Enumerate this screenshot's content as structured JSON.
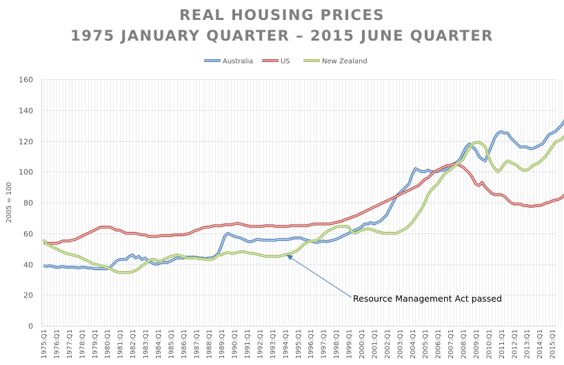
{
  "chart_data": {
    "type": "line",
    "title": "REAL HOUSING PRICES",
    "subtitle": "1975 JANUARY QUARTER – 2015 JUNE QUARTER",
    "xlabel": "",
    "ylabel": "2005 = 100",
    "ylim": [
      0,
      160
    ],
    "yticks": [
      0,
      20,
      40,
      60,
      80,
      100,
      120,
      140,
      160
    ],
    "grid": true,
    "legend_position": "top-center",
    "x_start": "1975:Q1",
    "x_end": "2015:Q2",
    "x_tick_labels": [
      "1975:Q1",
      "1976:Q1",
      "1977:Q1",
      "1978:Q1",
      "1979:Q1",
      "1980:Q1",
      "1981:Q1",
      "1982:Q1",
      "1983:Q1",
      "1984:Q1",
      "1985:Q1",
      "1986:Q1",
      "1987:Q1",
      "1988:Q1",
      "1989:Q1",
      "1990:Q1",
      "1991:Q1",
      "1992:Q1",
      "1993:Q1",
      "1994:Q1",
      "1995:Q1",
      "1996:Q1",
      "1997:Q1",
      "1998:Q1",
      "1999:Q1",
      "2000:Q1",
      "2001:Q1",
      "2002:Q1",
      "2003:Q1",
      "2004:Q1",
      "2005:Q1",
      "2006:Q1",
      "2007:Q1",
      "2008:Q1",
      "2009:Q1",
      "2010:Q1",
      "2011:Q1",
      "2012:Q1",
      "2013:Q1",
      "2014:Q1",
      "2015:Q1"
    ],
    "series": [
      {
        "name": "Australia",
        "color": "#4a7ebb",
        "values": [
          39,
          38.5,
          39,
          38.5,
          38,
          38,
          38.5,
          38,
          38,
          38,
          38,
          37.5,
          38,
          38,
          37.5,
          37.5,
          37,
          37,
          37,
          37,
          37,
          38,
          40,
          42,
          43,
          43,
          43,
          45,
          46,
          44,
          45,
          43,
          44,
          42,
          41,
          40,
          40,
          41,
          41,
          41,
          42,
          43,
          44,
          44,
          44,
          44.5,
          44.5,
          44.5,
          44.5,
          44,
          44,
          43.5,
          44,
          44,
          45,
          47,
          52,
          58,
          60,
          59,
          58,
          57.5,
          57,
          56,
          55,
          54.5,
          55,
          56,
          56,
          55.5,
          55.5,
          55.5,
          55.5,
          55.5,
          56,
          56,
          56,
          56,
          56.5,
          57,
          57,
          57,
          56,
          55.5,
          55,
          54.5,
          54,
          54.5,
          55,
          54.5,
          55,
          55.5,
          56,
          57,
          58,
          59,
          60,
          61,
          62,
          63,
          64,
          66,
          66,
          67,
          66,
          67,
          68,
          70,
          72,
          76,
          80,
          84,
          86,
          88,
          90,
          92,
          98,
          102,
          101,
          100,
          100,
          101,
          100,
          100,
          100,
          101,
          101,
          102,
          104,
          105,
          106,
          108,
          112,
          116,
          118,
          116,
          114,
          110,
          108,
          107,
          112,
          117,
          122,
          125,
          126,
          125,
          125,
          122,
          120,
          118,
          116,
          116,
          116,
          115,
          115,
          116,
          117,
          118,
          121,
          124,
          125,
          126,
          128,
          130,
          133,
          138
        ]
      },
      {
        "name": "US",
        "color": "#be4b48",
        "values": [
          54,
          53.5,
          53.5,
          53.5,
          53.5,
          54,
          55,
          55,
          55,
          55.5,
          56,
          57,
          58,
          59,
          60,
          61,
          62,
          63,
          64,
          64,
          64,
          64,
          63,
          62,
          62,
          61,
          60,
          60,
          60,
          60,
          59.5,
          59,
          59,
          58,
          58,
          58,
          58,
          58.5,
          58.5,
          58.5,
          58.5,
          59,
          59,
          59,
          59,
          59.5,
          60,
          61,
          62,
          62.5,
          63.5,
          64,
          64,
          64.5,
          65,
          65,
          65,
          65.5,
          65.5,
          65.5,
          66,
          66.5,
          66,
          65.5,
          65,
          64.5,
          64.5,
          64.5,
          64.5,
          64.5,
          65,
          65,
          65,
          64.5,
          64.5,
          64.5,
          64.5,
          64.5,
          65,
          65,
          65,
          65,
          65,
          65,
          65.5,
          66,
          66,
          66,
          66,
          66,
          66,
          66.5,
          67,
          67.5,
          68,
          69,
          69.5,
          70.5,
          71,
          72,
          73,
          74,
          75,
          76,
          77,
          78,
          79,
          80,
          81,
          82,
          83,
          84,
          85,
          86,
          87,
          88,
          89,
          90,
          91,
          93,
          95,
          96,
          98,
          100,
          101,
          102,
          103,
          104,
          104,
          105,
          105,
          104,
          103,
          101,
          99,
          96,
          92,
          91,
          93,
          90,
          88,
          86,
          85,
          85,
          85,
          84,
          82,
          80,
          79,
          79,
          79,
          78,
          78,
          77.5,
          77.5,
          78,
          78,
          78.5,
          79.5,
          80,
          81,
          81.5,
          82,
          83,
          85,
          87
        ]
      },
      {
        "name": "New Zealand",
        "color": "#9bbb59",
        "values": [
          56,
          53,
          52,
          51,
          50,
          49,
          48,
          47,
          46.5,
          46,
          45.5,
          45,
          44,
          43,
          42,
          41,
          40,
          39.5,
          39,
          38.5,
          38,
          37,
          36,
          35,
          34.5,
          34.5,
          34.5,
          34.5,
          35,
          36,
          37,
          39,
          40,
          42,
          43,
          43,
          42,
          42,
          43,
          44,
          45,
          45.5,
          46,
          45.5,
          45,
          44,
          44,
          44,
          44,
          43.5,
          43.5,
          43,
          43,
          43,
          44,
          46,
          46,
          47,
          47.5,
          47,
          47,
          47.5,
          48,
          48,
          47.5,
          47,
          47,
          46.5,
          46,
          45.5,
          45,
          45,
          45,
          45,
          45,
          45.5,
          46,
          46.5,
          47,
          48,
          49,
          51,
          53,
          54,
          55,
          55,
          55.5,
          57,
          59,
          61,
          62,
          63,
          64,
          64.5,
          64.5,
          64.5,
          64,
          61,
          60,
          61,
          62,
          62.5,
          63,
          62.5,
          62,
          61,
          60.5,
          60,
          60,
          60,
          60,
          60,
          61,
          62,
          63,
          65,
          67,
          70,
          73,
          76,
          80,
          85,
          88,
          90,
          92,
          95,
          98,
          100,
          101,
          103,
          105,
          106,
          108,
          112,
          115,
          118,
          119,
          119,
          118,
          116,
          110,
          105,
          102,
          100,
          102,
          105,
          107,
          106,
          105,
          104,
          102,
          101,
          101,
          102,
          104,
          105,
          106,
          108,
          110,
          113,
          116,
          119,
          120,
          121,
          123,
          125,
          128,
          131
        ]
      }
    ],
    "annotations": [
      {
        "text": "Resource Management Act passed",
        "points_to": "1994:Q1 New Zealand series",
        "x_quarter": "1994:Q1",
        "y_value": 47.5
      }
    ]
  },
  "legend": {
    "items": [
      "Australia",
      "US",
      "New Zealand"
    ]
  }
}
